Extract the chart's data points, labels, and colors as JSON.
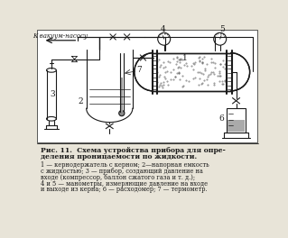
{
  "title_line1": "Рис. 11.  Схема устройства прибора для опре-",
  "title_line2": "деления проницаемости по жидкости.",
  "caption_line1": "1 — кернодержатель с керном; 2—напорная емкость",
  "caption_line2": "с жидкостью; 3 — прибор, создающий давление на",
  "caption_line3": "входе (компрессор, баллон сжатого газа и т. д.);",
  "caption_line4": "4 и 5 — манометры, измеряющие давление на входе",
  "caption_line5": "и выходе из керна; 6 — расходомер; 7 — термометр.",
  "label_vacuum": "К вакуум-насосу",
  "bg_color": "#e8e4d8",
  "fg_color": "#1a1a1a",
  "fig_width": 3.19,
  "fig_height": 2.64
}
